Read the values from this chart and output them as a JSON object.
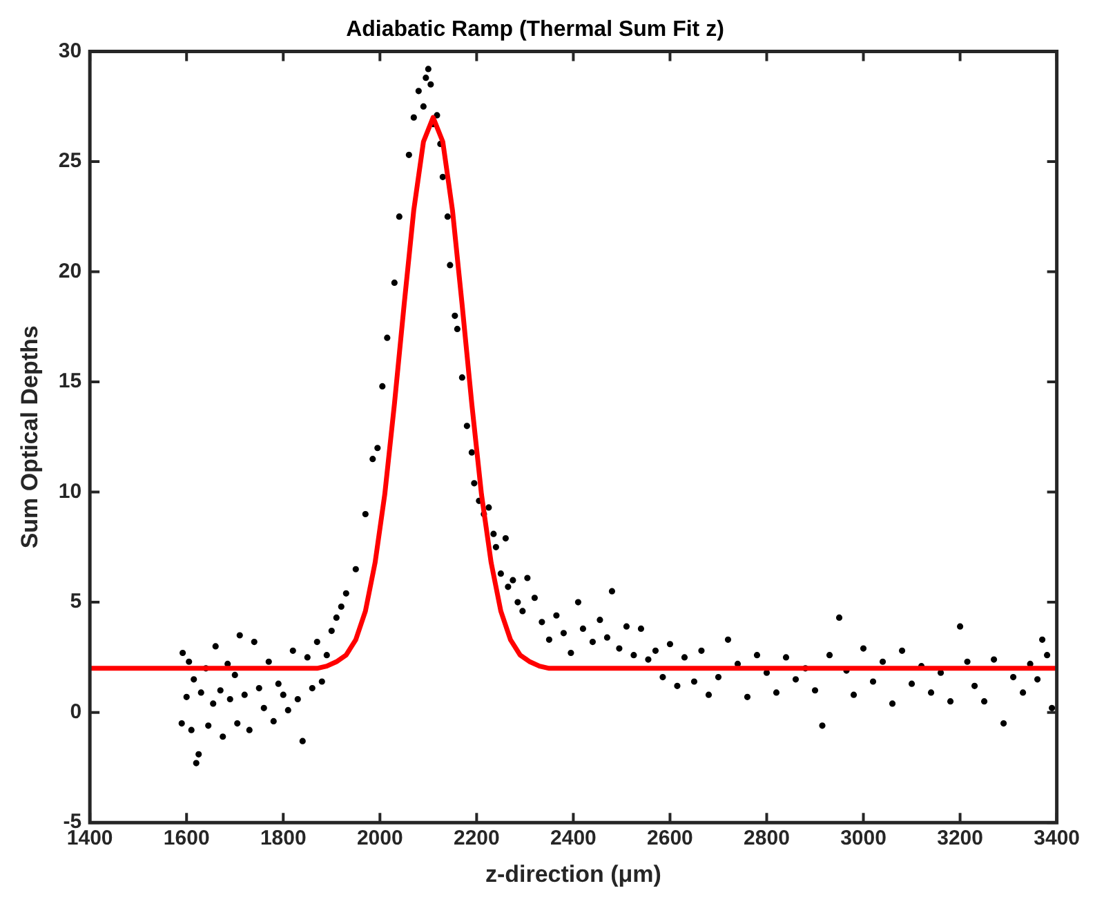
{
  "chart_data": {
    "type": "scatter",
    "title": "Adiabatic Ramp (Thermal Sum Fit z)",
    "xlabel": "z-direction (μm)",
    "ylabel": "Sum Optical Depths",
    "xlim": [
      1400,
      3400
    ],
    "xticks": [
      1400,
      1600,
      1800,
      2000,
      2200,
      2400,
      2600,
      2800,
      3000,
      3200,
      3400
    ],
    "ylim": [
      -5,
      30
    ],
    "yticks": [
      -5,
      0,
      5,
      10,
      15,
      20,
      25,
      30
    ],
    "grid": false,
    "legend": false,
    "marker": "circle",
    "series": [
      {
        "color": "#000000",
        "x": [
          1590,
          1592,
          1600,
          1605,
          1610,
          1615,
          1620,
          1625,
          1630,
          1640,
          1645,
          1655,
          1660,
          1670,
          1675,
          1685,
          1690,
          1700,
          1705,
          1710,
          1720,
          1730,
          1740,
          1750,
          1760,
          1770,
          1780,
          1790,
          1800,
          1810,
          1820,
          1830,
          1840,
          1850,
          1860,
          1870,
          1880,
          1890,
          1900,
          1910,
          1920,
          1930,
          1950,
          1970,
          1985,
          1995,
          2005,
          2015,
          2030,
          2040,
          2060,
          2070,
          2080,
          2090,
          2095,
          2100,
          2105,
          2110,
          2118,
          2125,
          2130,
          2140,
          2145,
          2155,
          2160,
          2170,
          2180,
          2190,
          2195,
          2205,
          2215,
          2225,
          2235,
          2240,
          2250,
          2260,
          2265,
          2275,
          2285,
          2295,
          2305,
          2320,
          2335,
          2350,
          2365,
          2380,
          2395,
          2410,
          2420,
          2440,
          2455,
          2470,
          2480,
          2495,
          2510,
          2525,
          2540,
          2555,
          2570,
          2585,
          2600,
          2615,
          2630,
          2650,
          2665,
          2680,
          2700,
          2720,
          2740,
          2760,
          2780,
          2800,
          2820,
          2840,
          2860,
          2880,
          2900,
          2915,
          2930,
          2950,
          2965,
          2980,
          3000,
          3020,
          3040,
          3060,
          3080,
          3100,
          3120,
          3140,
          3160,
          3180,
          3200,
          3215,
          3230,
          3250,
          3270,
          3290,
          3310,
          3330,
          3345,
          3360,
          3370,
          3380,
          3390
        ],
        "values": [
          -0.5,
          2.7,
          0.7,
          2.3,
          -0.8,
          1.5,
          -2.3,
          -1.9,
          0.9,
          2.0,
          -0.6,
          0.4,
          3.0,
          1.0,
          -1.1,
          2.2,
          0.6,
          1.7,
          -0.5,
          3.5,
          0.8,
          -0.8,
          3.2,
          1.1,
          0.2,
          2.3,
          -0.4,
          1.3,
          0.8,
          0.1,
          2.8,
          0.6,
          -1.3,
          2.5,
          1.1,
          3.2,
          1.4,
          2.6,
          3.7,
          4.3,
          4.8,
          5.4,
          6.5,
          9.0,
          11.5,
          12.0,
          14.8,
          17.0,
          19.5,
          22.5,
          25.3,
          27.0,
          28.2,
          27.5,
          28.8,
          29.2,
          28.5,
          26.7,
          27.1,
          25.8,
          24.3,
          22.5,
          20.3,
          18.0,
          17.4,
          15.2,
          13.0,
          11.8,
          10.4,
          9.6,
          9.0,
          9.3,
          8.1,
          7.5,
          6.3,
          7.9,
          5.7,
          6.0,
          5.0,
          4.6,
          6.1,
          5.2,
          4.1,
          3.3,
          4.4,
          3.6,
          2.7,
          5.0,
          3.8,
          3.2,
          4.2,
          3.4,
          5.5,
          2.9,
          3.9,
          2.6,
          3.8,
          2.4,
          2.8,
          1.6,
          3.1,
          1.2,
          2.5,
          1.4,
          2.8,
          0.8,
          1.6,
          3.3,
          2.2,
          0.7,
          2.6,
          1.8,
          0.9,
          2.5,
          1.5,
          2.0,
          1.0,
          -0.6,
          2.6,
          4.3,
          1.9,
          0.8,
          2.9,
          1.4,
          2.3,
          0.4,
          2.8,
          1.3,
          2.1,
          0.9,
          1.8,
          0.5,
          3.9,
          2.3,
          1.2,
          0.5,
          2.4,
          -0.5,
          1.6,
          0.9,
          2.2,
          1.5,
          3.3,
          2.6,
          0.2
        ]
      },
      {
        "type": "line",
        "color": "#ff0000",
        "marker": "none",
        "x": [
          1400,
          1800,
          1850,
          1870,
          1890,
          1910,
          1930,
          1950,
          1970,
          1990,
          2010,
          2030,
          2050,
          2070,
          2090,
          2110,
          2130,
          2150,
          2170,
          2190,
          2210,
          2230,
          2250,
          2270,
          2290,
          2310,
          2330,
          2350,
          2400,
          3400
        ],
        "values": [
          2.0,
          2.0,
          2.0,
          2.0,
          2.1,
          2.3,
          2.6,
          3.3,
          4.6,
          6.8,
          9.9,
          14.0,
          18.5,
          22.8,
          25.9,
          27.0,
          25.9,
          22.8,
          18.5,
          14.0,
          9.9,
          6.8,
          4.6,
          3.3,
          2.6,
          2.3,
          2.1,
          2.0,
          2.0,
          2.0
        ]
      }
    ]
  }
}
